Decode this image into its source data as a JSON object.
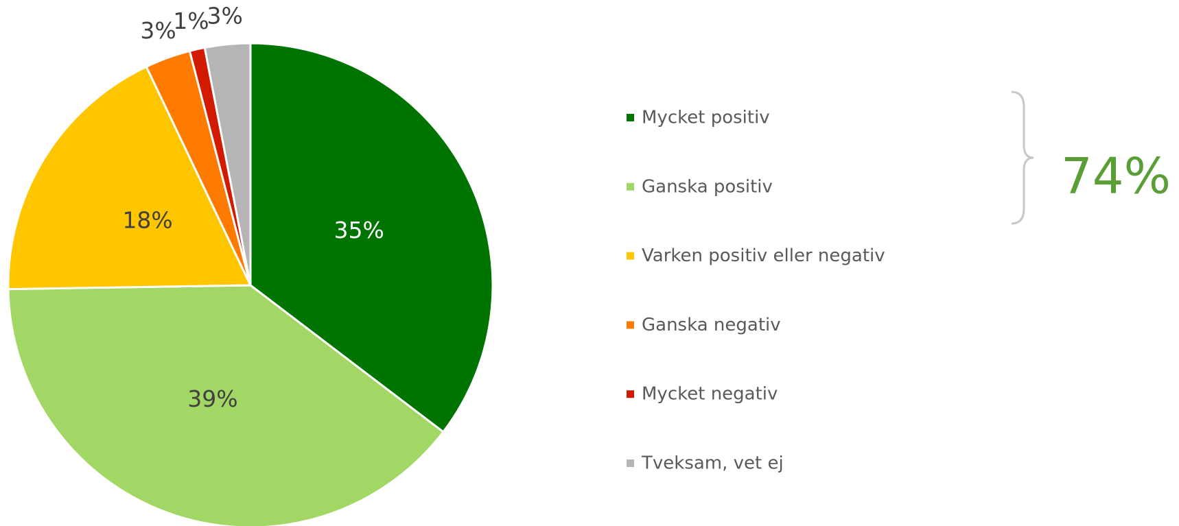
{
  "chart_data": {
    "type": "pie",
    "categories": [
      "Mycket positiv",
      "Ganska positiv",
      "Varken positiv eller negativ",
      "Ganska negativ",
      "Mycket negativ",
      "Tveksam, vet ej"
    ],
    "values": [
      35,
      39,
      18,
      3,
      1,
      3
    ],
    "value_labels": [
      "35%",
      "39%",
      "18%",
      "3%",
      "1%",
      "3%"
    ],
    "colors": [
      "#007400",
      "#a2d665",
      "#ffc600",
      "#ff7b00",
      "#d21a00",
      "#b5b5b5"
    ],
    "legend": "right",
    "annotation": "74%"
  }
}
